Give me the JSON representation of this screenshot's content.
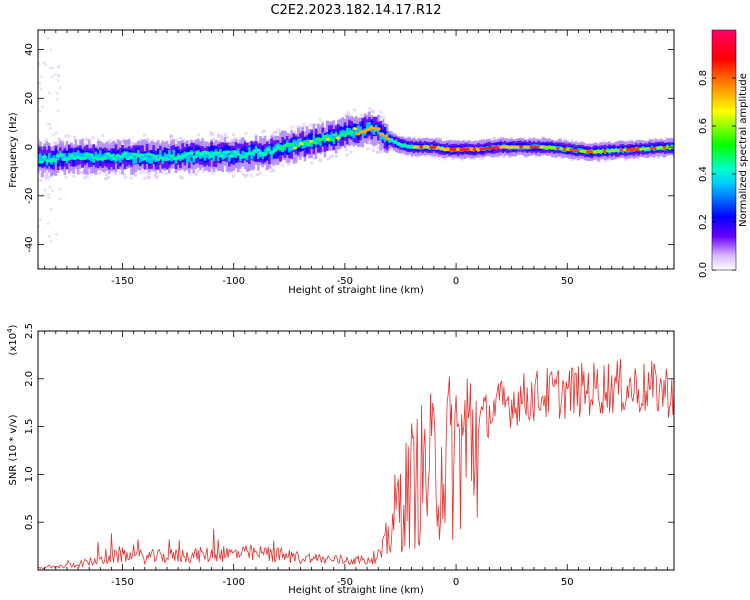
{
  "figure": {
    "title": "C2E2.2023.182.14.17.R12"
  },
  "chart_data": [
    {
      "type": "heatmap",
      "xlabel": "Height of straight line (km)",
      "ylabel": "Frequency (Hz)",
      "xlim": [
        -188,
        98
      ],
      "ylim": [
        -50,
        48
      ],
      "xticks": [
        -150,
        -100,
        -50,
        0,
        50
      ],
      "yticks": [
        -40,
        -20,
        0,
        20,
        40
      ],
      "grid": false,
      "ridge": {
        "x": [
          -188,
          -170,
          -150,
          -130,
          -110,
          -95,
          -85,
          -75,
          -65,
          -55,
          -48,
          -42,
          -38,
          -34,
          -30,
          -25,
          -20,
          -15,
          -10,
          -5,
          0,
          5,
          10,
          20,
          40,
          60,
          80,
          98
        ],
        "y": [
          -5,
          -4,
          -4,
          -4,
          -3,
          -3,
          -2,
          0,
          2,
          4,
          6,
          7,
          8,
          6,
          3,
          1,
          0,
          0,
          0,
          -1,
          -1,
          -1,
          -1,
          0,
          0,
          -2,
          -1,
          0
        ]
      }
    },
    {
      "type": "colorbar",
      "label": "Normalized spectral amplitude",
      "range": [
        0.0,
        1.0
      ],
      "ticks": [
        "0.0",
        "0.2",
        "0.4",
        "0.6",
        "0.8"
      ],
      "colors": [
        "#ffffff",
        "#5a00ff",
        "#0000ff",
        "#00ffff",
        "#00ff00",
        "#ffff00",
        "#ff0000",
        "#ff0080"
      ]
    },
    {
      "type": "line",
      "xlabel": "Height of straight line (km)",
      "ylabel": "SNR (10 * v/v)",
      "yscale_label": "(x10",
      "yscale_exp": "4",
      "yscale_close": ")",
      "xlim": [
        -188,
        98
      ],
      "ylim": [
        0,
        2.5
      ],
      "xticks": [
        -150,
        -100,
        -50,
        0,
        50
      ],
      "yticks": [
        0.5,
        1.0,
        1.5,
        2.0,
        2.5
      ],
      "ytick_labels": [
        "0.5",
        "1.0",
        "1.5",
        "2.0",
        "2.5"
      ],
      "grid": false,
      "series": [
        {
          "color": "#e8302c",
          "envelope_x": [
            -188,
            -175,
            -160,
            -150,
            -140,
            -120,
            -100,
            -85,
            -70,
            -50,
            -40,
            -33,
            -31,
            -28,
            -25,
            -22,
            -20,
            -16,
            -12,
            -8,
            -4,
            0,
            5,
            10,
            15,
            20,
            30,
            40,
            50,
            60,
            70,
            80,
            90,
            98
          ],
          "envelope_y": [
            0.02,
            0.05,
            0.12,
            0.18,
            0.16,
            0.18,
            0.2,
            0.2,
            0.15,
            0.12,
            0.12,
            0.2,
            0.35,
            0.6,
            0.8,
            0.9,
            1.0,
            1.1,
            1.15,
            1.25,
            1.3,
            1.4,
            1.5,
            1.6,
            1.7,
            1.78,
            1.85,
            1.9,
            1.92,
            1.95,
            1.98,
            1.96,
            1.95,
            1.93
          ]
        }
      ]
    }
  ]
}
